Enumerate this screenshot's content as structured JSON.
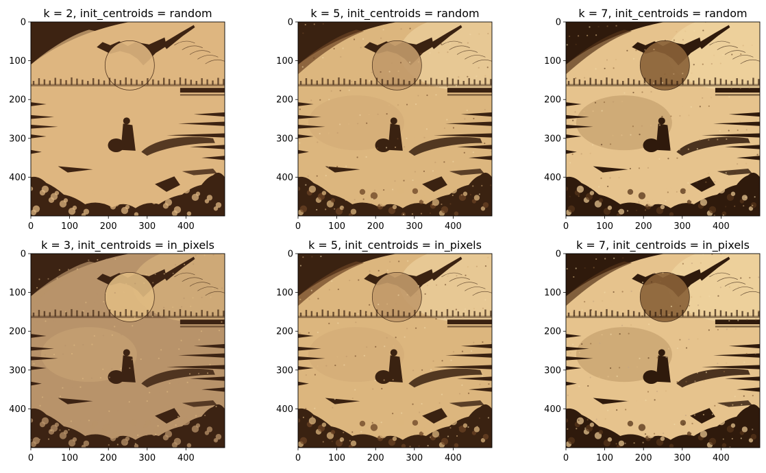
{
  "chart_data": [
    {
      "type": "heatmap",
      "title": "k = 2, init_centroids = random",
      "xlim": [
        0,
        500
      ],
      "ylim": [
        500,
        0
      ],
      "xticks": [
        0,
        100,
        200,
        300,
        400
      ],
      "yticks": [
        0,
        100,
        200,
        300,
        400
      ],
      "levels": 2,
      "palette": [
        "#3d2312",
        "#deb680"
      ]
    },
    {
      "type": "heatmap",
      "title": "k = 5, init_centroids = random",
      "xlim": [
        0,
        500
      ],
      "ylim": [
        500,
        0
      ],
      "xticks": [
        0,
        100,
        200,
        300,
        400
      ],
      "yticks": [
        0,
        100,
        200,
        300,
        400
      ],
      "levels": 5,
      "palette": [
        "#3a2211",
        "#6b4324",
        "#c29a6a",
        "#dcb67e",
        "#f0d7a6"
      ]
    },
    {
      "type": "heatmap",
      "title": "k = 7, init_centroids = random",
      "xlim": [
        0,
        500
      ],
      "ylim": [
        500,
        0
      ],
      "xticks": [
        0,
        100,
        200,
        300,
        400
      ],
      "yticks": [
        0,
        100,
        200,
        300,
        400
      ],
      "levels": 7,
      "palette": [
        "#2f1a0c",
        "#553419",
        "#8a6238",
        "#c09a6c",
        "#d8b47d",
        "#e6c38d",
        "#f2daa8"
      ]
    },
    {
      "type": "heatmap",
      "title": "k = 3, init_centroids = in_pixels",
      "xlim": [
        0,
        500
      ],
      "ylim": [
        500,
        0
      ],
      "xticks": [
        0,
        100,
        200,
        300,
        400
      ],
      "yticks": [
        0,
        100,
        200,
        300,
        400
      ],
      "levels": 3,
      "palette": [
        "#3c2313",
        "#b8936a",
        "#e0bb82"
      ]
    },
    {
      "type": "heatmap",
      "title": "k = 5, init_centroids = in_pixels",
      "xlim": [
        0,
        500
      ],
      "ylim": [
        500,
        0
      ],
      "xticks": [
        0,
        100,
        200,
        300,
        400
      ],
      "yticks": [
        0,
        100,
        200,
        300,
        400
      ],
      "levels": 5,
      "palette": [
        "#3a2211",
        "#6b4324",
        "#c29a6a",
        "#dcb67e",
        "#f0d7a6"
      ]
    },
    {
      "type": "heatmap",
      "title": "k = 7, init_centroids = in_pixels",
      "xlim": [
        0,
        500
      ],
      "ylim": [
        500,
        0
      ],
      "xticks": [
        0,
        100,
        200,
        300,
        400
      ],
      "yticks": [
        0,
        100,
        200,
        300,
        400
      ],
      "levels": 7,
      "palette": [
        "#2f1a0c",
        "#553419",
        "#8a6238",
        "#c4a582",
        "#d8b47d",
        "#e6c38d",
        "#f2daa8"
      ]
    }
  ]
}
